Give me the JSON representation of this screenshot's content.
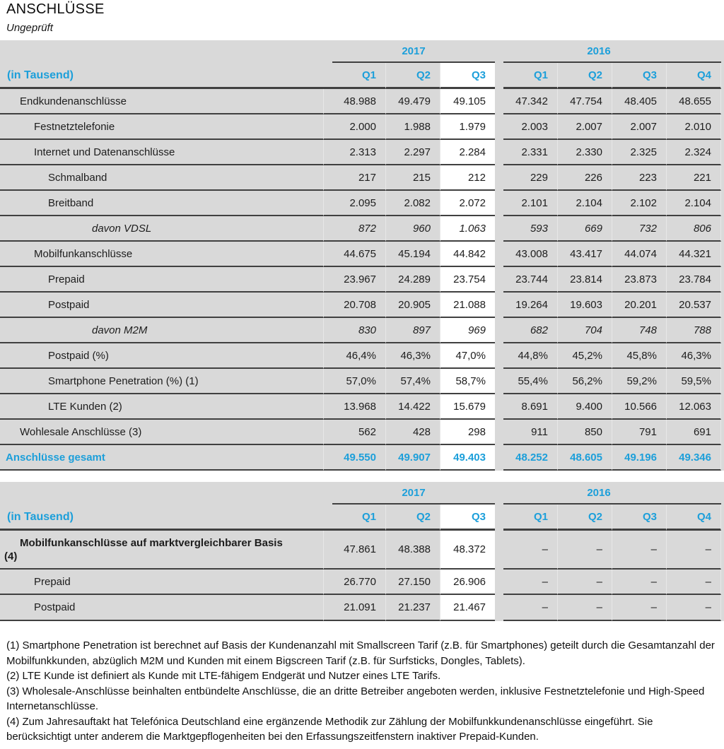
{
  "page": {
    "title": "ANSCHLÜSSE",
    "subtitle": "Ungeprüft"
  },
  "colors": {
    "accent_blue": "#1C9FDA",
    "table_bg": "#D9D9D9",
    "highlight_bg": "#FFFFFF",
    "border": "#404040"
  },
  "columns": {
    "unit_label": "(in Tausend)",
    "year_2017": "2017",
    "year_2016": "2016",
    "quarters_2017": [
      "Q1",
      "Q2",
      "Q3"
    ],
    "quarters_2016": [
      "Q1",
      "Q2",
      "Q3",
      "Q4"
    ],
    "highlighted_column": "2017 Q3"
  },
  "table1": {
    "rows": [
      {
        "label": "Endkundenanschlüsse",
        "indent": 1,
        "style": "normal",
        "values": [
          "48.988",
          "49.479",
          "49.105",
          "47.342",
          "47.754",
          "48.405",
          "48.655"
        ]
      },
      {
        "label": "Festnetztelefonie",
        "indent": 2,
        "style": "normal",
        "values": [
          "2.000",
          "1.988",
          "1.979",
          "2.003",
          "2.007",
          "2.007",
          "2.010"
        ]
      },
      {
        "label": "Internet und Datenanschlüsse",
        "indent": 2,
        "style": "normal",
        "values": [
          "2.313",
          "2.297",
          "2.284",
          "2.331",
          "2.330",
          "2.325",
          "2.324"
        ]
      },
      {
        "label": "Schmalband",
        "indent": 3,
        "style": "normal",
        "values": [
          "217",
          "215",
          "212",
          "229",
          "226",
          "223",
          "221"
        ]
      },
      {
        "label": "Breitband",
        "indent": 3,
        "style": "normal",
        "values": [
          "2.095",
          "2.082",
          "2.072",
          "2.101",
          "2.104",
          "2.102",
          "2.104"
        ]
      },
      {
        "label": "davon VDSL",
        "indent": 4,
        "style": "italic",
        "values": [
          "872",
          "960",
          "1.063",
          "593",
          "669",
          "732",
          "806"
        ]
      },
      {
        "label": "Mobilfunkanschlüsse",
        "indent": 2,
        "style": "normal",
        "values": [
          "44.675",
          "45.194",
          "44.842",
          "43.008",
          "43.417",
          "44.074",
          "44.321"
        ]
      },
      {
        "label": "Prepaid",
        "indent": 3,
        "style": "normal",
        "values": [
          "23.967",
          "24.289",
          "23.754",
          "23.744",
          "23.814",
          "23.873",
          "23.784"
        ]
      },
      {
        "label": "Postpaid",
        "indent": 3,
        "style": "normal",
        "values": [
          "20.708",
          "20.905",
          "21.088",
          "19.264",
          "19.603",
          "20.201",
          "20.537"
        ]
      },
      {
        "label": "davon M2M",
        "indent": 4,
        "style": "italic",
        "values": [
          "830",
          "897",
          "969",
          "682",
          "704",
          "748",
          "788"
        ]
      },
      {
        "label": "Postpaid (%)",
        "indent": 3,
        "style": "normal",
        "values": [
          "46,4%",
          "46,3%",
          "47,0%",
          "44,8%",
          "45,2%",
          "45,8%",
          "46,3%"
        ]
      },
      {
        "label": "Smartphone Penetration (%) (1)",
        "indent": 3,
        "style": "normal",
        "values": [
          "57,0%",
          "57,4%",
          "58,7%",
          "55,4%",
          "56,2%",
          "59,2%",
          "59,5%"
        ]
      },
      {
        "label": "LTE Kunden (2)",
        "indent": 3,
        "style": "normal",
        "values": [
          "13.968",
          "14.422",
          "15.679",
          "8.691",
          "9.400",
          "10.566",
          "12.063"
        ]
      },
      {
        "label": "Wohlesale Anschlüsse (3)",
        "indent": 1,
        "style": "normal",
        "values": [
          "562",
          "428",
          "298",
          "911",
          "850",
          "791",
          "691"
        ]
      },
      {
        "label": "Anschlüsse gesamt",
        "indent": 0,
        "style": "total",
        "values": [
          "49.550",
          "49.907",
          "49.403",
          "48.252",
          "48.605",
          "49.196",
          "49.346"
        ]
      }
    ]
  },
  "table2": {
    "rows": [
      {
        "label": "Mobilfunkanschlüsse auf marktvergleichbarer Basis (4)",
        "label_lines": [
          "Mobilfunkanschlüsse auf marktvergleichbarer Basis",
          "(4)"
        ],
        "indent": 1,
        "style": "bold",
        "values": [
          "47.861",
          "48.388",
          "48.372",
          "–",
          "–",
          "–",
          "–"
        ]
      },
      {
        "label": "Prepaid",
        "indent": 2,
        "style": "normal",
        "values": [
          "26.770",
          "27.150",
          "26.906",
          "–",
          "–",
          "–",
          "–"
        ]
      },
      {
        "label": "Postpaid",
        "indent": 2,
        "style": "normal",
        "values": [
          "21.091",
          "21.237",
          "21.467",
          "–",
          "–",
          "–",
          "–"
        ]
      }
    ]
  },
  "footnotes": [
    "(1) Smartphone Penetration ist berechnet auf Basis der Kundenanzahl mit Smallscreen Tarif (z.B. für Smartphones) geteilt durch die Gesamtanzahl der Mobilfunkkunden, abzüglich M2M und Kunden mit einem Bigscreen Tarif (z.B. für Surfsticks, Dongles, Tablets).",
    "(2) LTE Kunde ist definiert als Kunde mit LTE-fähigem Endgerät und Nutzer eines LTE Tarifs.",
    "(3) Wholesale-Anschlüsse beinhalten entbündelte Anschlüsse, die an dritte Betreiber angeboten werden, inklusive Festnetztelefonie und High-Speed Internetanschlüsse.",
    "(4) Zum Jahresauftakt hat Telefónica Deutschland eine ergänzende Methodik zur Zählung der Mobilfunkkundenanschlüsse eingeführt. Sie berücksichtigt unter anderem die Marktgepflogenheiten bei den Erfassungszeitfenstern inaktiver Prepaid-Kunden."
  ]
}
